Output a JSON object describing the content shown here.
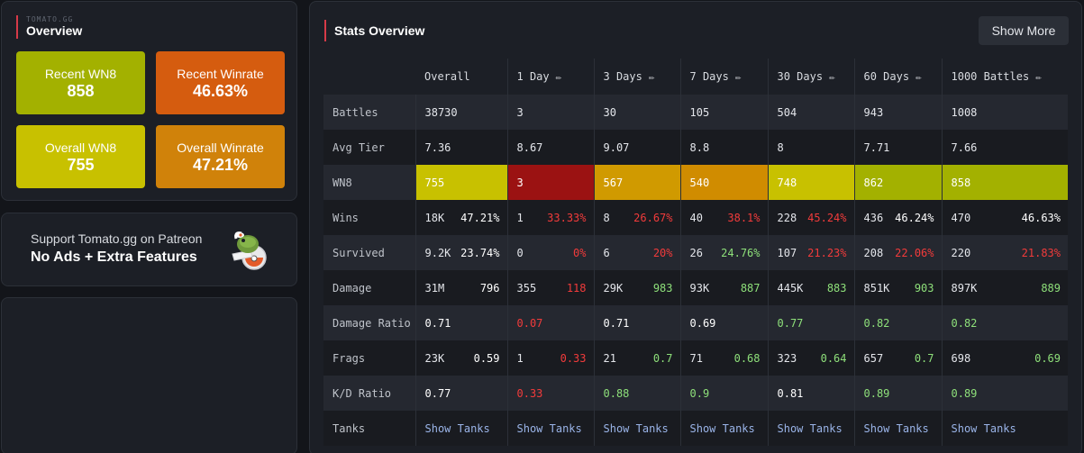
{
  "overview": {
    "brand": "TOMATO.GG",
    "title": "Overview",
    "tiles": [
      {
        "label": "Recent WN8",
        "value": "858",
        "color": "#a3b100"
      },
      {
        "label": "Recent Winrate",
        "value": "46.63%",
        "color": "#d55c0f"
      },
      {
        "label": "Overall WN8",
        "value": "755",
        "color": "#c8c100"
      },
      {
        "label": "Overall Winrate",
        "value": "47.21%",
        "color": "#d0820a"
      }
    ]
  },
  "patreon": {
    "subtitle": "Support Tomato.gg on Patreon",
    "headline": "No Ads + Extra Features",
    "icon": "tomato-mascot-icon"
  },
  "stats": {
    "title": "Stats Overview",
    "show_more": "Show More",
    "edit_icon": "pencil-icon",
    "columns": [
      "Overall",
      "1 Day",
      "3 Days",
      "7 Days",
      "30 Days",
      "60 Days",
      "1000 Battles"
    ],
    "rows": {
      "battles": {
        "label": "Battles",
        "values": [
          "38730",
          "3",
          "30",
          "105",
          "504",
          "943",
          "1008"
        ]
      },
      "avg_tier": {
        "label": "Avg Tier",
        "values": [
          "7.36",
          "8.67",
          "9.07",
          "8.8",
          "8",
          "7.71",
          "7.66"
        ]
      },
      "wn8": {
        "label": "WN8",
        "values": [
          "755",
          "3",
          "567",
          "540",
          "748",
          "862",
          "858"
        ],
        "colors": [
          "#c8c100",
          "#9b1212",
          "#d09a00",
          "#d08c00",
          "#c8c100",
          "#a3b100",
          "#a3b100"
        ]
      },
      "wins": {
        "label": "Wins",
        "a": [
          "18K",
          "1",
          "8",
          "40",
          "228",
          "436",
          "470"
        ],
        "b": [
          "47.21%",
          "33.33%",
          "26.67%",
          "38.1%",
          "45.24%",
          "46.24%",
          "46.63%"
        ],
        "b_color": [
          "#ffffff",
          "#f23b3b",
          "#f23b3b",
          "#f23b3b",
          "#f23b3b",
          "#ffffff",
          "#ffffff"
        ]
      },
      "survived": {
        "label": "Survived",
        "a": [
          "9.2K",
          "0",
          "6",
          "26",
          "107",
          "208",
          "220"
        ],
        "b": [
          "23.74%",
          "0%",
          "20%",
          "24.76%",
          "21.23%",
          "22.06%",
          "21.83%"
        ],
        "b_color": [
          "#ffffff",
          "#f23b3b",
          "#f23b3b",
          "#8ee07a",
          "#f23b3b",
          "#f23b3b",
          "#f23b3b"
        ]
      },
      "damage": {
        "label": "Damage",
        "a": [
          "31M",
          "355",
          "29K",
          "93K",
          "445K",
          "851K",
          "897K"
        ],
        "b": [
          "796",
          "118",
          "983",
          "887",
          "883",
          "903",
          "889"
        ],
        "b_color": [
          "#ffffff",
          "#f23b3b",
          "#8ee07a",
          "#8ee07a",
          "#8ee07a",
          "#8ee07a",
          "#8ee07a"
        ]
      },
      "damage_ratio": {
        "label": "Damage Ratio",
        "values": [
          "0.71",
          "0.07",
          "0.71",
          "0.69",
          "0.77",
          "0.82",
          "0.82"
        ],
        "colors": [
          "#ffffff",
          "#f23b3b",
          "#ffffff",
          "#ffffff",
          "#8ee07a",
          "#8ee07a",
          "#8ee07a"
        ]
      },
      "frags": {
        "label": "Frags",
        "a": [
          "23K",
          "1",
          "21",
          "71",
          "323",
          "657",
          "698"
        ],
        "b": [
          "0.59",
          "0.33",
          "0.7",
          "0.68",
          "0.64",
          "0.7",
          "0.69"
        ],
        "b_color": [
          "#ffffff",
          "#f23b3b",
          "#8ee07a",
          "#8ee07a",
          "#8ee07a",
          "#8ee07a",
          "#8ee07a"
        ]
      },
      "kd_ratio": {
        "label": "K/D Ratio",
        "values": [
          "0.77",
          "0.33",
          "0.88",
          "0.9",
          "0.81",
          "0.89",
          "0.89"
        ],
        "colors": [
          "#ffffff",
          "#f23b3b",
          "#8ee07a",
          "#8ee07a",
          "#ffffff",
          "#8ee07a",
          "#8ee07a"
        ]
      },
      "tanks": {
        "label": "Tanks",
        "link": "Show Tanks"
      }
    }
  }
}
